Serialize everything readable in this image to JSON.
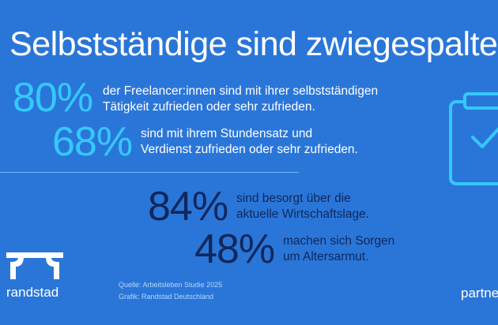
{
  "title": "Selbstständige sind zwiegespalten",
  "stats": [
    {
      "percent": "80%",
      "line1": "der Freelancer:innen sind mit ihrer selbstständigen",
      "line2": "Tätigkeit zufrieden oder sehr zufrieden."
    },
    {
      "percent": "68%",
      "line1": "sind mit ihrem Stundensatz und",
      "line2": "Verdienst zufrieden oder sehr zufrieden."
    },
    {
      "percent": "84%",
      "line1": "sind besorgt über die",
      "line2": "aktuelle Wirtschaftslage."
    },
    {
      "percent": "48%",
      "line1": "machen sich Sorgen",
      "line2": "um Altersarmut."
    }
  ],
  "source": {
    "line1": "Quelle: Arbeitsleben Studie 2025",
    "line2": "Grafik: Randstad Deutschland"
  },
  "logo_text": "randstad",
  "partner_text": "partne",
  "colors": {
    "background": "#2a76d8",
    "accent_light": "#35c8ff",
    "accent_dark": "#10275d"
  },
  "icons": [
    "clipboard-icon",
    "randstad-logo"
  ]
}
